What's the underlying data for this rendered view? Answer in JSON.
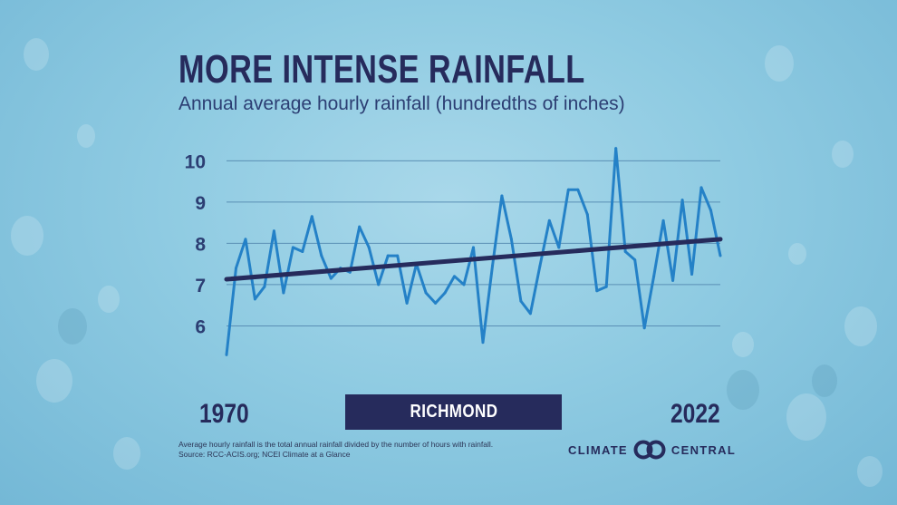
{
  "colors": {
    "navy": "#262b5c",
    "series_line": "#2481c7",
    "grid": "#5a8fb5",
    "tick_text": "#2c3e73",
    "badge_bg": "#262b5c",
    "badge_text": "#ffffff"
  },
  "header": {
    "title": "MORE INTENSE RAINFALL",
    "subtitle": "Annual average hourly rainfall (hundredths of inches)"
  },
  "chart_data": {
    "type": "line",
    "title": "MORE INTENSE RAINFALL",
    "subtitle": "Annual average hourly rainfall (hundredths of inches)",
    "xlabel": "",
    "ylabel": "",
    "xlim": [
      1970,
      2022
    ],
    "ylim": [
      5,
      10.6
    ],
    "yticks": [
      6,
      7,
      8,
      9,
      10
    ],
    "grid": true,
    "x_tick_labels": [
      "1970",
      "2022"
    ],
    "series": [
      {
        "name": "Annual average hourly rainfall",
        "x": [
          1970,
          1971,
          1972,
          1973,
          1974,
          1975,
          1976,
          1977,
          1978,
          1979,
          1980,
          1981,
          1982,
          1983,
          1984,
          1985,
          1986,
          1987,
          1988,
          1989,
          1990,
          1991,
          1992,
          1993,
          1994,
          1995,
          1996,
          1997,
          1998,
          1999,
          2000,
          2001,
          2002,
          2003,
          2004,
          2005,
          2006,
          2007,
          2008,
          2009,
          2010,
          2011,
          2012,
          2013,
          2014,
          2015,
          2016,
          2017,
          2018,
          2019,
          2020,
          2021,
          2022
        ],
        "values": [
          5.3,
          7.4,
          8.1,
          6.65,
          6.95,
          8.3,
          6.8,
          7.9,
          7.8,
          8.65,
          7.7,
          7.15,
          7.4,
          7.3,
          8.4,
          7.9,
          7.0,
          7.7,
          7.7,
          6.55,
          7.5,
          6.8,
          6.55,
          6.8,
          7.2,
          7.0,
          7.9,
          5.6,
          7.45,
          9.15,
          8.1,
          6.6,
          6.3,
          7.45,
          8.55,
          7.9,
          9.3,
          9.3,
          8.7,
          6.85,
          6.95,
          10.3,
          7.8,
          7.6,
          5.95,
          7.2,
          8.55,
          7.1,
          9.05,
          7.25,
          9.35,
          8.8,
          7.7
        ]
      },
      {
        "name": "Trend",
        "x": [
          1970,
          2022
        ],
        "values": [
          7.13,
          8.1
        ]
      }
    ]
  },
  "badge": {
    "city": "RICHMOND"
  },
  "years": {
    "start": "1970",
    "end": "2022"
  },
  "footnote": {
    "line1": "Average hourly rainfall is the total annual rainfall divided by the number of hours with rainfall.",
    "line2": "Source: RCC-ACIS.org; NCEI Climate at a Glance"
  },
  "logo": {
    "left_text": "CLIMATE",
    "right_text": "CENTRAL",
    "icon": "climate-central-rings-icon"
  }
}
